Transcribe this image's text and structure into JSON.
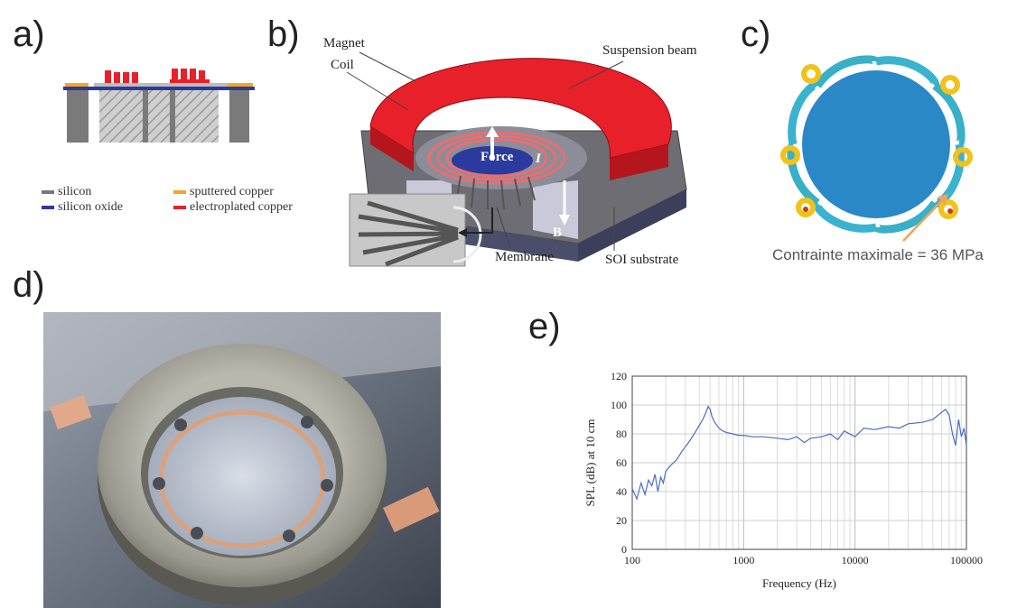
{
  "panels": {
    "a": {
      "label": "a)",
      "legend": [
        {
          "text": "silicon",
          "color": "#777777"
        },
        {
          "text": "sputtered copper",
          "color": "#f5a623"
        },
        {
          "text": "silicon oxide",
          "color": "#2b3a9e"
        },
        {
          "text": "electroplated copper",
          "color": "#e8202a"
        }
      ]
    },
    "b": {
      "label": "b)",
      "callouts": {
        "magnet": "Magnet",
        "coil": "Coil",
        "suspension_beam": "Suspension beam",
        "force": "Force",
        "current": "I",
        "field": "B",
        "membrane": "Membrane",
        "soi_substrate": "SOI substrate"
      }
    },
    "c": {
      "label": "c)",
      "stress_text": "Contrainte maximale = 36 MPa"
    },
    "d": {
      "label": "d)"
    },
    "e": {
      "label": "e)"
    }
  },
  "chart_data": {
    "type": "line",
    "xlabel": "Frequency (Hz)",
    "ylabel": "SPL (dB) at 10 cm",
    "xscale": "log",
    "xlim": [
      100,
      100000
    ],
    "ylim": [
      0,
      120
    ],
    "xticks": [
      "100",
      "1000",
      "10000",
      "100000"
    ],
    "yticks": [
      "0",
      "20",
      "40",
      "60",
      "80",
      "100",
      "120"
    ],
    "grid": true,
    "line_color": "#4a6fc2",
    "series": [
      {
        "x": [
          100,
          110,
          120,
          130,
          140,
          150,
          160,
          170,
          180,
          190,
          200,
          220,
          250,
          280,
          320,
          360,
          400,
          430,
          460,
          480,
          500,
          520,
          550,
          600,
          650,
          700,
          800,
          900,
          1000,
          1200,
          1500,
          2000,
          2500,
          3000,
          3500,
          4000,
          5000,
          6000,
          7000,
          8000,
          10000,
          12000,
          15000,
          20000,
          25000,
          30000,
          40000,
          50000,
          60000,
          65000,
          70000,
          75000,
          80000,
          85000,
          90000,
          95000,
          100000
        ],
        "y": [
          42,
          35,
          46,
          38,
          48,
          44,
          52,
          40,
          50,
          46,
          54,
          58,
          62,
          68,
          74,
          80,
          86,
          90,
          95,
          99,
          97,
          92,
          88,
          84,
          82,
          81,
          80,
          79,
          79,
          78,
          78,
          77,
          76,
          78,
          74,
          77,
          78,
          80,
          76,
          82,
          78,
          84,
          83,
          85,
          84,
          87,
          88,
          90,
          95,
          97,
          93,
          80,
          72,
          90,
          78,
          84,
          72
        ]
      }
    ]
  }
}
